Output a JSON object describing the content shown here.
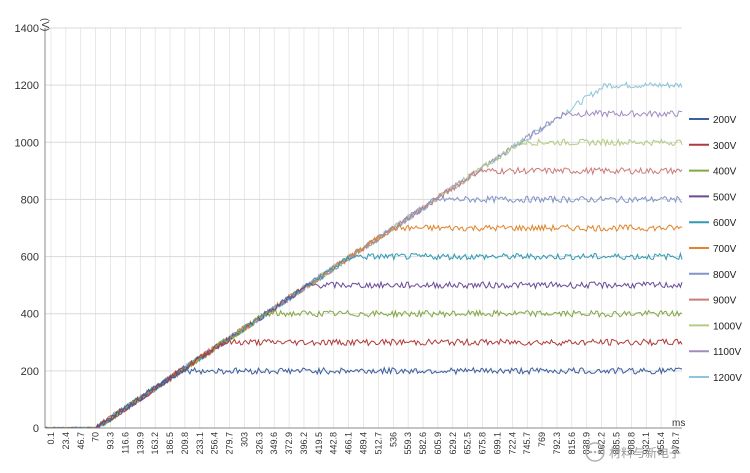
{
  "chart_data": {
    "type": "line",
    "ylabel": "(V)",
    "xlabel": "ms",
    "ylim": [
      0,
      1400
    ],
    "yticks": [
      0,
      200,
      400,
      600,
      800,
      1000,
      1200,
      1400
    ],
    "xlim": [
      0,
      1000
    ],
    "xticks": [
      "0.1",
      "23.4",
      "46.7",
      "70",
      "93.3",
      "116.6",
      "139.9",
      "163.2",
      "186.5",
      "209.8",
      "233.1",
      "256.4",
      "279.7",
      "303",
      "326.3",
      "349.6",
      "372.9",
      "396.2",
      "419.5",
      "442.8",
      "466.1",
      "489.4",
      "512.7",
      "536",
      "559.3",
      "582.6",
      "605.9",
      "629.2",
      "652.5",
      "675.8",
      "699.1",
      "722.4",
      "745.7",
      "769",
      "792.3",
      "815.6",
      "838.9",
      "862.2",
      "885.5",
      "908.8",
      "932.1",
      "955.4",
      "978.7"
    ],
    "grid": true,
    "legend_position": "right",
    "ramp": {
      "start_ms": 80,
      "rate_v_per_ms": 1.5
    },
    "series": [
      {
        "name": "200V",
        "target": 200,
        "color": "#3b5fa0"
      },
      {
        "name": "300V",
        "target": 300,
        "color": "#b03a3a"
      },
      {
        "name": "400V",
        "target": 400,
        "color": "#82a844"
      },
      {
        "name": "500V",
        "target": 500,
        "color": "#6a4a98"
      },
      {
        "name": "600V",
        "target": 600,
        "color": "#2f9ab2"
      },
      {
        "name": "700V",
        "target": 700,
        "color": "#e0852a"
      },
      {
        "name": "800V",
        "target": 800,
        "color": "#8096c8"
      },
      {
        "name": "900V",
        "target": 900,
        "color": "#cc7a7a"
      },
      {
        "name": "1000V",
        "target": 1000,
        "color": "#b4cc82"
      },
      {
        "name": "1100V",
        "target": 1100,
        "color": "#a08cc0"
      },
      {
        "name": "1200V",
        "target": 1200,
        "color": "#8cc6da"
      }
    ]
  },
  "colors": {
    "grid": "#d9d9d9",
    "axis": "#888888",
    "background": "#ffffff"
  },
  "watermark": {
    "icon": "chat-bubble-icon",
    "text": "材料与新电子"
  }
}
